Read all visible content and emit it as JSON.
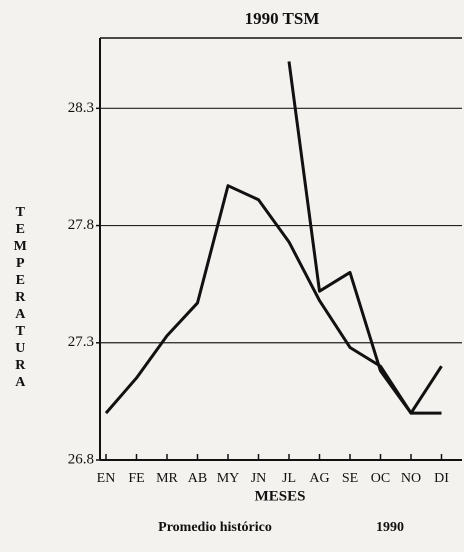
{
  "chart_data": {
    "type": "line",
    "title": "1990 TSM",
    "x_label": "MESES",
    "y_label": "TEMPERATURA",
    "categories": [
      "EN",
      "FE",
      "MR",
      "AB",
      "MY",
      "JN",
      "JL",
      "AG",
      "SE",
      "OC",
      "NO",
      "DI"
    ],
    "series": [
      {
        "name": "Promedio histórico",
        "color": "#111111",
        "values": [
          27.0,
          27.15,
          27.33,
          27.47,
          27.97,
          27.91,
          27.73,
          27.48,
          27.28,
          27.2,
          27.0,
          27.0
        ]
      },
      {
        "name": "1990",
        "color": "#111111",
        "values": [
          null,
          null,
          null,
          null,
          null,
          null,
          28.5,
          27.52,
          27.6,
          27.18,
          27.0,
          27.2
        ]
      }
    ],
    "ylim": [
      26.8,
      28.6
    ],
    "yticks": [
      26.8,
      27.3,
      27.8,
      28.3
    ],
    "grid": true,
    "legend": "bottom"
  }
}
